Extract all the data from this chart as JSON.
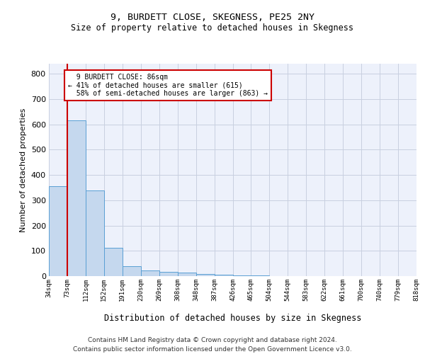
{
  "title1": "9, BURDETT CLOSE, SKEGNESS, PE25 2NY",
  "title2": "Size of property relative to detached houses in Skegness",
  "xlabel": "Distribution of detached houses by size in Skegness",
  "ylabel": "Number of detached properties",
  "footer1": "Contains HM Land Registry data © Crown copyright and database right 2024.",
  "footer2": "Contains public sector information licensed under the Open Government Licence v3.0.",
  "bin_labels": [
    "34sqm",
    "73sqm",
    "112sqm",
    "152sqm",
    "191sqm",
    "230sqm",
    "269sqm",
    "308sqm",
    "348sqm",
    "387sqm",
    "426sqm",
    "465sqm",
    "504sqm",
    "544sqm",
    "583sqm",
    "622sqm",
    "661sqm",
    "700sqm",
    "740sqm",
    "779sqm",
    "818sqm"
  ],
  "bar_values": [
    355,
    615,
    338,
    113,
    38,
    23,
    17,
    14,
    9,
    5,
    3,
    2,
    1,
    1,
    1,
    0,
    0,
    0,
    0,
    0
  ],
  "bar_color": "#c5d8ee",
  "bar_edge_color": "#5a9fd4",
  "red_line_x": 1.0,
  "annotation_text": "  9 BURDETT CLOSE: 86sqm\n← 41% of detached houses are smaller (615)\n  58% of semi-detached houses are larger (863) →",
  "annotation_box_color": "#ffffff",
  "annotation_border_color": "#cc0000",
  "ylim": [
    0,
    840
  ],
  "yticks": [
    0,
    100,
    200,
    300,
    400,
    500,
    600,
    700,
    800
  ],
  "grid_color": "#c8cfe0",
  "background_color": "#ffffff",
  "plot_bg_color": "#edf1fb"
}
